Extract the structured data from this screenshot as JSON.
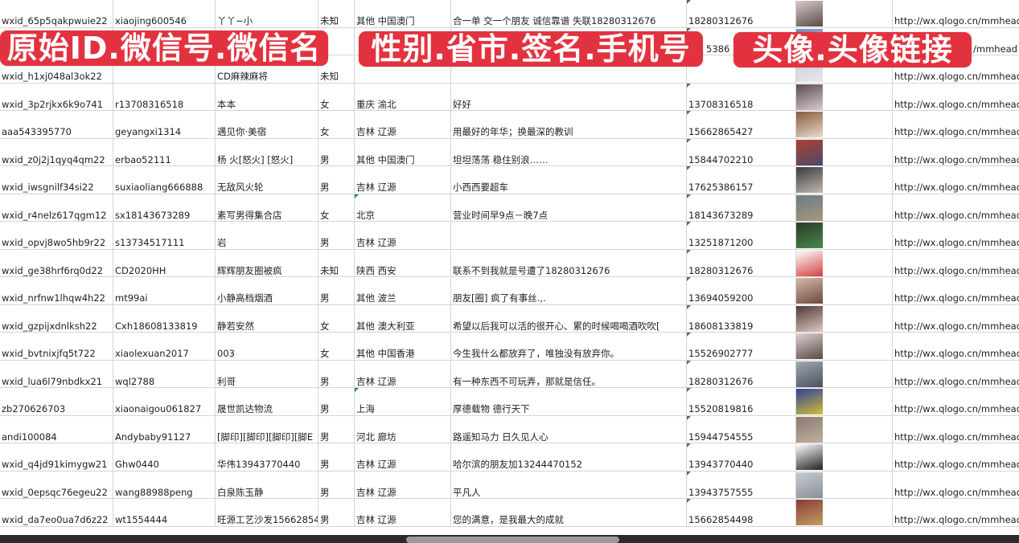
{
  "overlay_labels": [
    "原始ID.微信号.微信名",
    "性别.省市.签名.手机号",
    "头像.头像链接"
  ],
  "colors": {
    "label_bg": "#e3323f",
    "grid": "#d4d4d4",
    "comment_marker": "#2e8b3e"
  },
  "rows": [
    {
      "id": "wxid_65p5qakpwuie22",
      "wechat": "xiaojing600546",
      "name": "丫丫~小",
      "gender": "未知",
      "region": "其他 中国澳门",
      "signature": "合一单 交一个朋友 诚信靠谱 失联18280312676",
      "phone": "18280312676",
      "url": "http://wx.qlogo.cn/mmhead",
      "avatar": [
        "#d8c8c8",
        "#5a4a48"
      ]
    },
    {
      "id": "",
      "wechat": "",
      "name": "",
      "gender": "",
      "region": "",
      "signature": "",
      "phone": "5386",
      "url": "/mmhead",
      "avatar": [
        "#7a88b8",
        "#c9cde0"
      ]
    },
    {
      "id": "wxid_h1xj048al3ok22",
      "wechat": "",
      "name": "CD麻辣麻将",
      "gender": "未知",
      "region": "",
      "signature": "",
      "phone": "",
      "url": "http://wx.qlogo.cn/mmhead",
      "avatar": [
        "#c8ccd8",
        "#e8e8ee"
      ]
    },
    {
      "id": "wxid_3p2rjkx6k9o741",
      "wechat": "r13708316518",
      "name": "本本",
      "gender": "女",
      "region": "重庆 渝北",
      "signature": "好好",
      "phone": "13708316518",
      "url": "http://wx.qlogo.cn/mmhead",
      "avatar": [
        "#5a4a50",
        "#d8ccd0"
      ]
    },
    {
      "id": "aaa543395770",
      "wechat": "geyangxi1314",
      "name": "遇见你·美宿",
      "gender": "女",
      "region": "吉林 辽源",
      "signature": "用最好的年华；换最深的教训",
      "phone": "15662865427",
      "url": "http://wx.qlogo.cn/mmhead",
      "avatar": [
        "#8a5a3a",
        "#e8dcd0"
      ]
    },
    {
      "id": "wxid_z0j2j1qyq4qm22",
      "wechat": "erbao52111",
      "name": "杨 火[怒火] [怒火]",
      "gender": "男",
      "region": "其他 中国澳门",
      "signature": "坦坦荡荡 稳住别浪……",
      "phone": "15844702210",
      "url": "http://wx.qlogo.cn/mmhead",
      "avatar": [
        "#b04030",
        "#4a4a6a"
      ]
    },
    {
      "id": "wxid_iwsgnilf34si22",
      "wechat": "suxiaoliang666888",
      "name": "无敌风火轮",
      "gender": "男",
      "region": "吉林 辽源",
      "signature": "小西西要超车",
      "phone": "17625386157",
      "url": "http://wx.qlogo.cn/mmhead",
      "avatar": [
        "#3a3a40",
        "#c0b8b0"
      ]
    },
    {
      "id": "wxid_r4nelz617qgm12",
      "wechat": "sx18143673289",
      "name": "素写男得集合店",
      "gender": "女",
      "region": "北京",
      "signature": "营业时间早9点－晚7点",
      "phone": "18143673289",
      "url": "http://wx.qlogo.cn/mmhead",
      "avatar": [
        "#6a7a8a",
        "#a89878"
      ]
    },
    {
      "id": "wxid_opvj8wo5hb9r22",
      "wechat": "s13734517111",
      "name": "岩",
      "gender": "男",
      "region": "吉林 辽源",
      "signature": "",
      "phone": "13251871200",
      "url": "http://wx.qlogo.cn/mmhead",
      "avatar": [
        "#2a3a2a",
        "#4a8a4a"
      ]
    },
    {
      "id": "wxid_ge38hrf6rq0d22",
      "wechat": "CD2020HH",
      "name": "辉辉朋友圈被疯",
      "gender": "未知",
      "region": "陕西 西安",
      "signature": "联系不到我就是号遭了18280312676",
      "phone": "18280312676",
      "url": "http://wx.qlogo.cn/mmhead",
      "avatar": [
        "#ffffff",
        "#d04040"
      ]
    },
    {
      "id": "wxid_nrfnw1lhqw4h22",
      "wechat": "mt99ai",
      "name": "小静高档烟酒",
      "gender": "男",
      "region": "其他 波兰",
      "signature": "朋友[圈] 疯了有事丝.,.",
      "phone": "13694059200",
      "url": "http://wx.qlogo.cn/mmhead",
      "avatar": [
        "#d8b8a8",
        "#6a4a40"
      ]
    },
    {
      "id": "wxid_gzpijxdnlksh22",
      "wechat": "Cxh18608133819",
      "name": "静若安然",
      "gender": "女",
      "region": "其他 澳大利亚",
      "signature": "希望以后我可以活的很开心、累的时候喝喝酒吹吹[",
      "phone": "18608133819",
      "url": "http://wx.qlogo.cn/mmhead",
      "avatar": [
        "#4a3a38",
        "#e0c8c0"
      ]
    },
    {
      "id": "wxid_bvtnixjfq5t722",
      "wechat": "xiaolexuan2017",
      "name": "003",
      "gender": "女",
      "region": "其他 中国香港",
      "signature": "今生我什么都放弃了，唯独没有放弃你。",
      "phone": "15526902777",
      "url": "http://wx.qlogo.cn/mmhead",
      "avatar": [
        "#e0d0d0",
        "#5a4848"
      ]
    },
    {
      "id": "wxid_lua6l79nbdkx21",
      "wechat": "wql2788",
      "name": "利哥",
      "gender": "男",
      "region": "吉林 辽源",
      "signature": "有一种东西不可玩弄，那就是信任。",
      "phone": "18280312676",
      "url": "http://wx.qlogo.cn/mmhead",
      "avatar": [
        "#a0a8b0",
        "#4a5060"
      ]
    },
    {
      "id": "zb270626703",
      "wechat": "xiaonaigou061827",
      "name": "晟世凯达物流",
      "gender": "男",
      "region": "上海",
      "signature": "厚德载物 德行天下",
      "phone": "15520819816",
      "url": "http://wx.qlogo.cn/mmhead",
      "avatar": [
        "#3040a0",
        "#d0c030"
      ]
    },
    {
      "id": "andi100084",
      "wechat": "Andybaby91127",
      "name": "[脚印][脚印][脚印][脚E",
      "gender": "男",
      "region": "河北 廊坊",
      "signature": "路遥知马力 日久见人心",
      "phone": "15944754555",
      "url": "http://wx.qlogo.cn/mmhead",
      "avatar": [
        "#8a7a70",
        "#c0b0a0"
      ]
    },
    {
      "id": "wxid_q4jd91kimygw21",
      "wechat": "Ghw0440",
      "name": "华伟13943770440",
      "gender": "男",
      "region": "吉林 辽源",
      "signature": "哈尔滨的朋友加13244470152",
      "phone": "13943770440",
      "url": "http://wx.qlogo.cn/mmhead",
      "avatar": [
        "#ffffff",
        "#202020"
      ]
    },
    {
      "id": "wxid_0epsqc76egeu22",
      "wechat": "wang88988peng",
      "name": "白泉陈玉静",
      "gender": "男",
      "region": "吉林 辽源",
      "signature": "平凡人",
      "phone": "13943757555",
      "url": "http://wx.qlogo.cn/mmhead",
      "avatar": [
        "#c8ccd4",
        "#8a9098"
      ]
    },
    {
      "id": "wxid_da7eo0ua7d6z22",
      "wechat": "wt1554444",
      "name": "旺源工艺沙发15662854",
      "gender": "男",
      "region": "吉林 辽源",
      "signature": "您的满意，是我最大的成就",
      "phone": "15662854498",
      "url": "http://wx.qlogo.cn/mmhead",
      "avatar": [
        "#8a3a3a",
        "#c0a060"
      ]
    }
  ]
}
